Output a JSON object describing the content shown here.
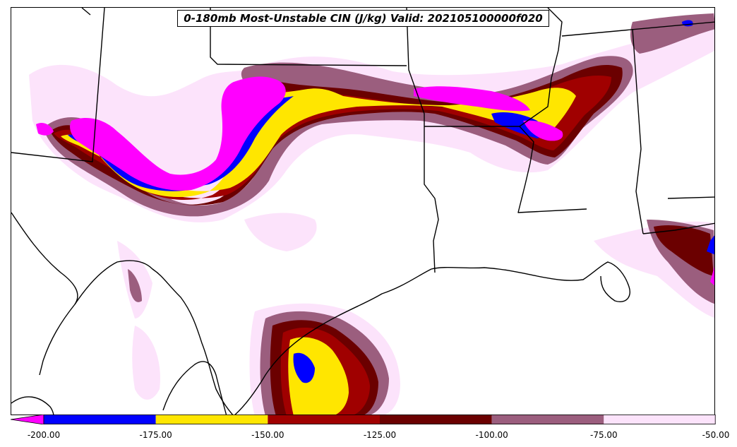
{
  "title": "0-180mb Most-Unstable CIN (J/kg) Valid: 202105100000f020",
  "colorbar": {
    "extend": "min",
    "boundaries": [
      -200,
      -175,
      -150,
      -125,
      -100,
      -75,
      -50
    ],
    "colors": [
      "#0000ff",
      "#ffe600",
      "#a00000",
      "#6b0000",
      "#9b5e7e",
      "#fce3fb"
    ],
    "under_color": "#ff00ff",
    "tick_labels": [
      "-200.00",
      "-175.00",
      "-150.00",
      "-125.00",
      "-100.00",
      "-75.00",
      "-50.00"
    ]
  },
  "palette": {
    "magenta": "#ff00ff",
    "blue": "#0000ff",
    "yellow": "#ffe600",
    "red": "#a00000",
    "dark_red": "#6b0000",
    "mauve": "#9b5e7e",
    "light_pink": "#fce3fb",
    "state_lines": "#000000"
  }
}
